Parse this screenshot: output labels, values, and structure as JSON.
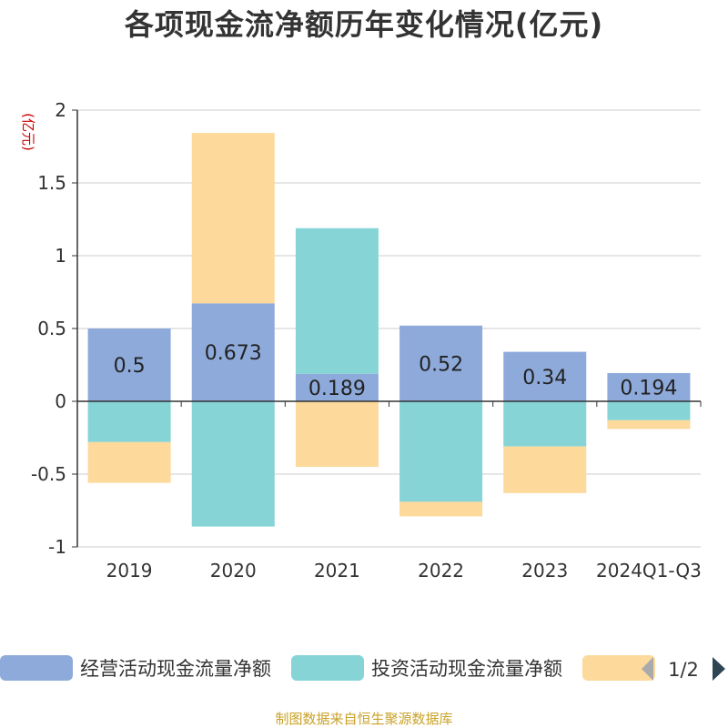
{
  "title": "各项现金流净额历年变化情况(亿元)",
  "source": "制图数据来自恒生聚源数据库",
  "chart_data": {
    "type": "bar",
    "stacked": true,
    "title": "各项现金流净额历年变化情况(亿元)",
    "ylabel": "(亿元)",
    "ylim": [
      -1,
      2
    ],
    "yticks": [
      2,
      1.5,
      1,
      0.5,
      0,
      -0.5,
      -1
    ],
    "grid": true,
    "legend_position": "bottom",
    "categories": [
      "2019",
      "2020",
      "2021",
      "2022",
      "2023",
      "2024Q1-Q3"
    ],
    "series": [
      {
        "name": "经营活动现金流量净额",
        "color": "#8eaadb",
        "values": [
          0.5,
          0.673,
          0.189,
          0.52,
          0.34,
          0.194
        ],
        "labels": [
          "0.5",
          "0.673",
          "0.189",
          "0.52",
          "0.34",
          "0.194"
        ]
      },
      {
        "name": "投资活动现金流量净额",
        "color": "#86d4d6",
        "values": [
          -0.28,
          -0.86,
          1.0,
          -0.69,
          -0.31,
          -0.13
        ]
      },
      {
        "name": "",
        "color": "#fdd99b",
        "values": [
          -0.28,
          1.17,
          -0.45,
          -0.1,
          -0.32,
          -0.06
        ]
      }
    ],
    "legend_pager": "1/2"
  }
}
